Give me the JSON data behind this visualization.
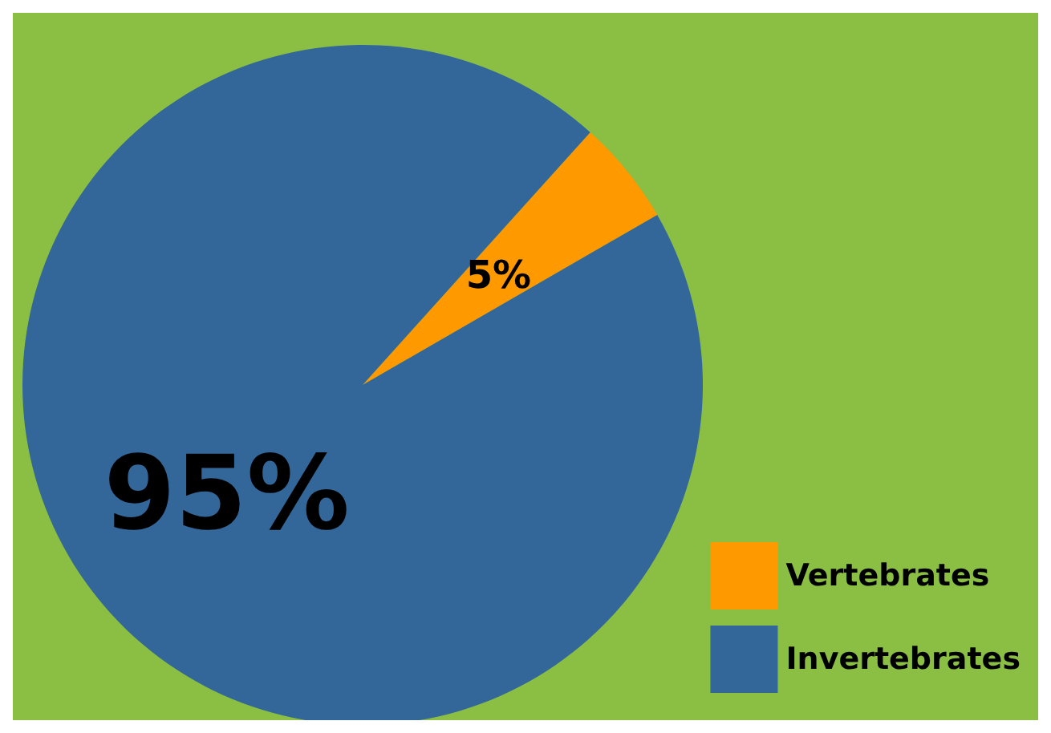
{
  "chart_data": {
    "type": "pie",
    "categories": [
      "Vertebrates",
      "Invertebrates"
    ],
    "values": [
      5,
      95
    ],
    "colors": [
      "#ff9900",
      "#336699"
    ],
    "value_labels": [
      "5%",
      "95%"
    ],
    "legend": "bottom right"
  }
}
